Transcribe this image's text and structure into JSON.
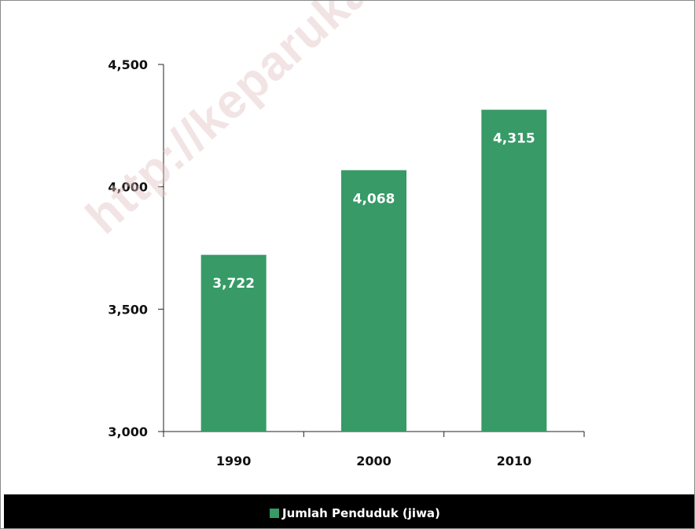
{
  "watermark": "http://keparukab.bps.go.id",
  "colors": {
    "bar": "#379a67",
    "axis": "#222222",
    "legend_background": "#000000"
  },
  "legend": {
    "label": "Jumlah Penduduk (jiwa)",
    "placement": "bottom"
  },
  "chart_data": {
    "type": "bar",
    "categories": [
      "1990",
      "2000",
      "2010"
    ],
    "series": [
      {
        "name": "Jumlah Penduduk (jiwa)",
        "values": [
          3722,
          4068,
          4315
        ]
      }
    ],
    "data_labels": [
      "3,722",
      "4,068",
      "4,315"
    ],
    "ylim": [
      3000,
      4500
    ],
    "yticks": [
      3000,
      3500,
      4000,
      4500
    ],
    "ytick_labels": [
      "3,000",
      "3,500",
      "4,000",
      "4,500"
    ],
    "grid": false,
    "title": "",
    "xlabel": "",
    "ylabel": ""
  }
}
